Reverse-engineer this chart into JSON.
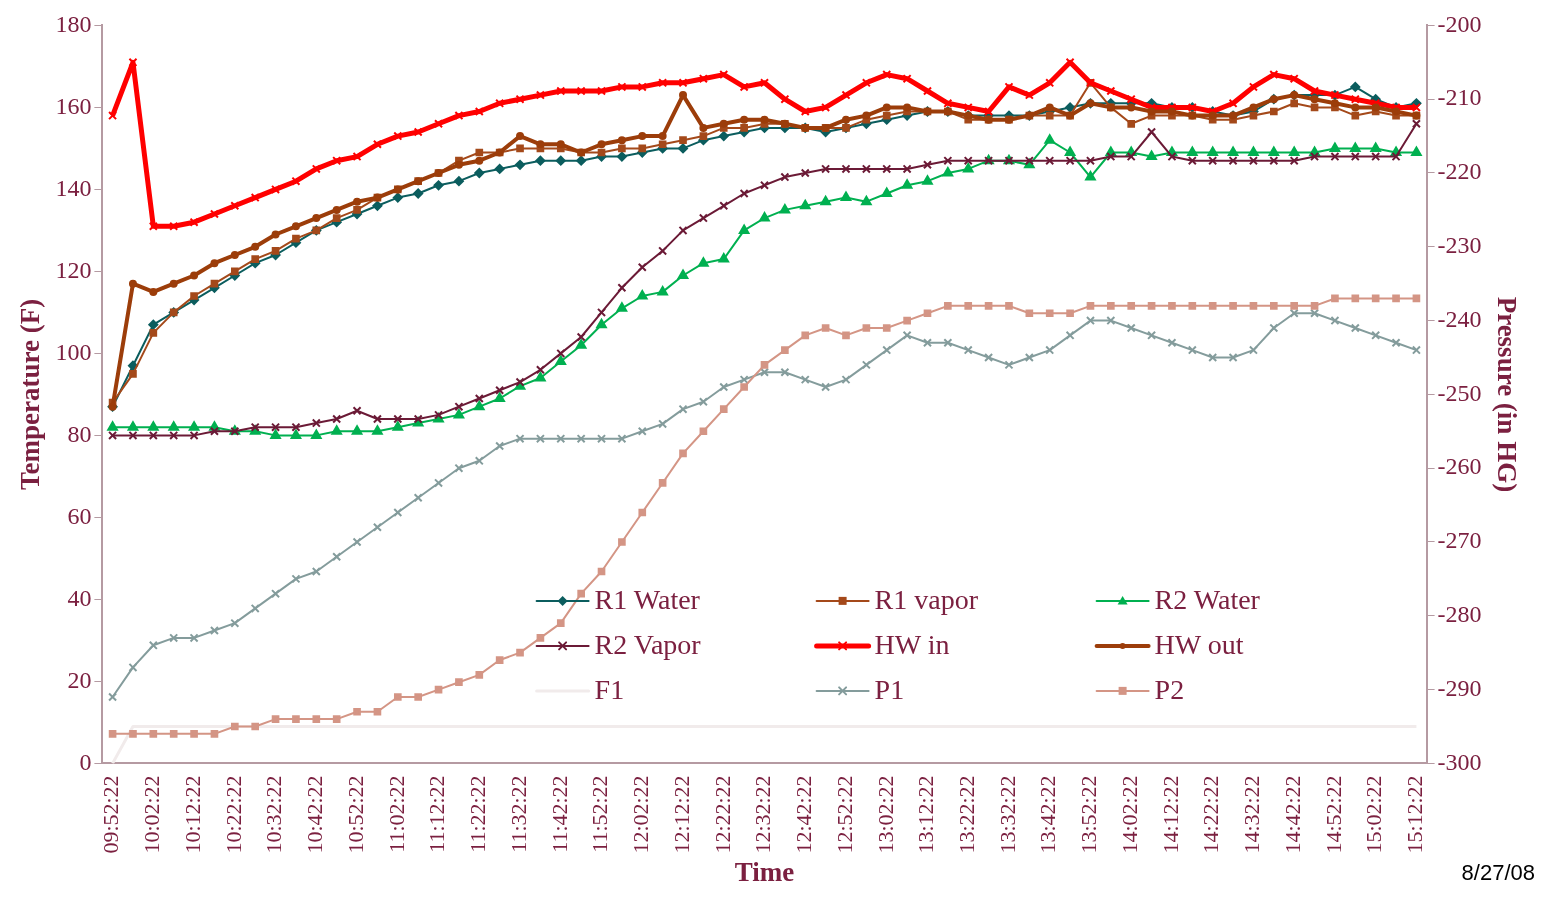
{
  "chart_data": {
    "type": "line",
    "xlabel": "Time",
    "ylabel": "Temperature (F)",
    "y2label": "Pressure (in HG)",
    "annotations": [
      "8/27/08"
    ],
    "categories": [
      "09:52:22",
      null,
      "10:02:22",
      null,
      "10:12:22",
      null,
      "10:22:22",
      null,
      "10:32:22",
      null,
      "10:42:22",
      null,
      "10:52:22",
      null,
      "11:02:22",
      null,
      "11:12:22",
      null,
      "11:22:22",
      null,
      "11:32:22",
      null,
      "11:42:22",
      null,
      "11:52:22",
      null,
      "12:02:22",
      null,
      "12:12:22",
      null,
      "12:22:22",
      null,
      "12:32:22",
      null,
      "12:42:22",
      null,
      "12:52:22",
      null,
      "13:02:22",
      null,
      "13:12:22",
      null,
      "13:22:22",
      null,
      "13:32:22",
      null,
      "13:42:22",
      null,
      "13:52:22",
      null,
      "14:02:22",
      null,
      "14:12:22",
      null,
      "14:22:22",
      null,
      "14:32:22",
      null,
      "14:42:22",
      null,
      "14:52:22",
      null,
      "15:02:22",
      null,
      "15:12:22"
    ],
    "ylim": [
      0,
      180
    ],
    "yticks": [
      0,
      20,
      40,
      60,
      80,
      100,
      120,
      140,
      160,
      180
    ],
    "y2lim": [
      -300,
      -200
    ],
    "y2ticks": [
      -300,
      -290,
      -280,
      -270,
      -260,
      -250,
      -240,
      -230,
      -220,
      -210,
      -200
    ],
    "legend": "bottom right",
    "series": [
      {
        "name": "R1 Water",
        "color": "#0b5d5e",
        "marker": "diamond",
        "values": [
          87,
          97,
          107,
          110,
          113,
          116,
          119,
          122,
          124,
          127,
          130,
          132,
          134,
          136,
          138,
          139,
          141,
          142,
          144,
          145,
          146,
          147,
          147,
          147,
          148,
          148,
          149,
          150,
          150,
          152,
          153,
          154,
          155,
          155,
          155,
          154,
          155,
          156,
          157,
          158,
          159,
          159,
          158,
          158,
          158,
          158,
          159,
          160,
          161,
          161,
          161,
          161,
          160,
          160,
          159,
          158,
          159,
          162,
          163,
          163,
          163,
          165,
          162,
          160,
          161
        ]
      },
      {
        "name": "R1 vapor",
        "color": "#a4491a",
        "marker": "square",
        "values": [
          88,
          95,
          105,
          110,
          114,
          117,
          120,
          123,
          125,
          128,
          130,
          133,
          135,
          138,
          140,
          142,
          144,
          147,
          149,
          149,
          150,
          150,
          150,
          149,
          149,
          150,
          150,
          151,
          152,
          153,
          155,
          155,
          156,
          156,
          155,
          155,
          155,
          157,
          158,
          159,
          159,
          159,
          157,
          157,
          157,
          158,
          158,
          158,
          166,
          160,
          156,
          158,
          158,
          158,
          157,
          157,
          158,
          159,
          161,
          160,
          160,
          158,
          159,
          158,
          158
        ]
      },
      {
        "name": "R2 Water",
        "color": "#00b050",
        "marker": "triangle",
        "values": [
          82,
          82,
          82,
          82,
          82,
          82,
          81,
          81,
          80,
          80,
          80,
          81,
          81,
          81,
          82,
          83,
          84,
          85,
          87,
          89,
          92,
          94,
          98,
          102,
          107,
          111,
          114,
          115,
          119,
          122,
          123,
          130,
          133,
          135,
          136,
          137,
          138,
          137,
          139,
          141,
          142,
          144,
          145,
          147,
          147,
          146,
          152,
          149,
          143,
          149,
          149,
          148,
          149,
          149,
          149,
          149,
          149,
          149,
          149,
          149,
          150,
          150,
          150,
          149,
          149
        ]
      },
      {
        "name": "R2 Vapor",
        "color": "#6b1a36",
        "marker": "cross",
        "values": [
          80,
          80,
          80,
          80,
          80,
          81,
          81,
          82,
          82,
          82,
          83,
          84,
          86,
          84,
          84,
          84,
          85,
          87,
          89,
          91,
          93,
          96,
          100,
          104,
          110,
          116,
          121,
          125,
          130,
          133,
          136,
          139,
          141,
          143,
          144,
          145,
          145,
          145,
          145,
          145,
          146,
          147,
          147,
          147,
          147,
          147,
          147,
          147,
          147,
          148,
          148,
          154,
          148,
          147,
          147,
          147,
          147,
          147,
          147,
          148,
          148,
          148,
          148,
          148,
          156
        ]
      },
      {
        "name": "HW in",
        "color": "#ff0000",
        "marker": "cross",
        "values": [
          158,
          171,
          131,
          131,
          132,
          134,
          136,
          138,
          140,
          142,
          145,
          147,
          148,
          151,
          153,
          154,
          156,
          158,
          159,
          161,
          162,
          163,
          164,
          164,
          164,
          165,
          165,
          166,
          166,
          167,
          168,
          165,
          166,
          162,
          159,
          160,
          163,
          166,
          168,
          167,
          164,
          161,
          160,
          159,
          165,
          163,
          166,
          171,
          166,
          164,
          162,
          160,
          160,
          160,
          159,
          161,
          165,
          168,
          167,
          164,
          163,
          162,
          161,
          160,
          160
        ]
      },
      {
        "name": "HW out",
        "color": "#9c3d0a",
        "marker": "circle",
        "values": [
          87,
          117,
          115,
          117,
          119,
          122,
          124,
          126,
          129,
          131,
          133,
          135,
          137,
          138,
          140,
          142,
          144,
          146,
          147,
          149,
          153,
          151,
          151,
          149,
          151,
          152,
          153,
          153,
          163,
          155,
          156,
          157,
          157,
          156,
          155,
          155,
          157,
          158,
          160,
          160,
          159,
          159,
          158,
          157,
          157,
          158,
          160,
          158,
          161,
          160,
          160,
          159,
          159,
          158,
          158,
          158,
          160,
          162,
          163,
          162,
          161,
          160,
          160,
          159,
          158
        ]
      },
      {
        "name": "F1",
        "color": "#f1ebeb",
        "marker": "none",
        "values": [
          0,
          9,
          9,
          9,
          9,
          9,
          9,
          9,
          9,
          9,
          9,
          9,
          9,
          9,
          9,
          9,
          9,
          9,
          9,
          9,
          9,
          9,
          9,
          9,
          9,
          9,
          9,
          9,
          9,
          9,
          9,
          9,
          9,
          9,
          9,
          9,
          9,
          9,
          9,
          9,
          9,
          9,
          9,
          9,
          9,
          9,
          9,
          9,
          9,
          9,
          9,
          9,
          9,
          9,
          9,
          9,
          9,
          9,
          9,
          9,
          9,
          9,
          9,
          9,
          9
        ]
      },
      {
        "name": "P1",
        "color": "#849c9c",
        "marker": "cross",
        "axis": "y2",
        "values": [
          -291,
          -287,
          -284,
          -283,
          -283,
          -282,
          -281,
          -279,
          -277,
          -275,
          -274,
          -272,
          -270,
          -268,
          -266,
          -264,
          -262,
          -260,
          -259,
          -257,
          -256,
          -256,
          -256,
          -256,
          -256,
          -256,
          -255,
          -254,
          -252,
          -251,
          -249,
          -248,
          -247,
          -247,
          -248,
          -249,
          -248,
          -246,
          -244,
          -242,
          -243,
          -243,
          -244,
          -245,
          -246,
          -245,
          -244,
          -242,
          -240,
          -240,
          -241,
          -242,
          -243,
          -244,
          -245,
          -245,
          -244,
          -241,
          -239,
          -239,
          -240,
          -241,
          -242,
          -243,
          -244
        ]
      },
      {
        "name": "P2",
        "color": "#d49585",
        "marker": "square",
        "axis": "y2",
        "values": [
          -296,
          -296,
          -296,
          -296,
          -296,
          -296,
          -295,
          -295,
          -294,
          -294,
          -294,
          -294,
          -293,
          -293,
          -291,
          -291,
          -290,
          -289,
          -288,
          -286,
          -285,
          -283,
          -281,
          -277,
          -274,
          -270,
          -266,
          -262,
          -258,
          -255,
          -252,
          -249,
          -246,
          -244,
          -242,
          -241,
          -242,
          -241,
          -241,
          -240,
          -239,
          -238,
          -238,
          -238,
          -238,
          -239,
          -239,
          -239,
          -238,
          -238,
          -238,
          -238,
          -238,
          -238,
          -238,
          -238,
          -238,
          -238,
          -238,
          -238,
          -237,
          -237,
          -237,
          -237,
          -237
        ]
      }
    ]
  }
}
